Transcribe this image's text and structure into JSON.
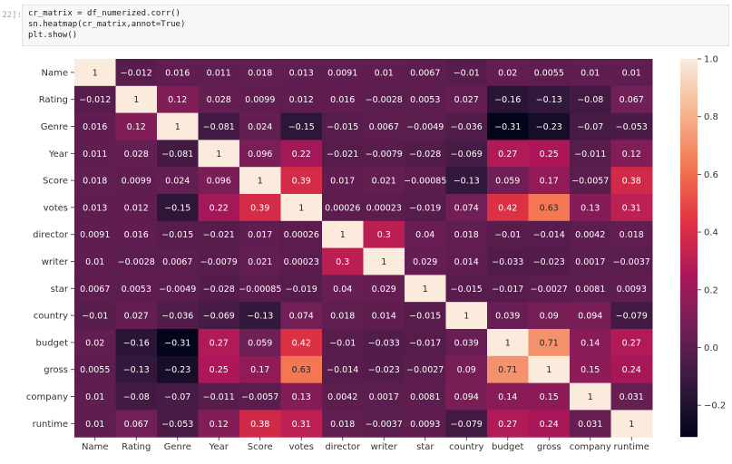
{
  "notebook": {
    "prompt": "22]:",
    "code_lines": [
      "cr_matrix = df_numerized.corr()",
      "sn.heatmap(cr_matrix,annot=True)",
      "plt.show()"
    ]
  },
  "chart_data": {
    "type": "heatmap",
    "title": "",
    "rows": [
      "Name",
      "Rating",
      "Genre",
      "Year",
      "Score",
      "votes",
      "director",
      "writer",
      "star",
      "country",
      "budget",
      "gross",
      "company",
      "runtime"
    ],
    "cols": [
      "Name",
      "Rating",
      "Genre",
      "Year",
      "Score",
      "votes",
      "director",
      "writer",
      "star",
      "country",
      "budget",
      "gross",
      "company",
      "runtime"
    ],
    "values": [
      [
        1,
        -0.012,
        0.016,
        0.011,
        0.018,
        0.013,
        0.0091,
        0.01,
        0.0067,
        -0.01,
        0.02,
        0.0055,
        0.01,
        0.01
      ],
      [
        -0.012,
        1,
        0.12,
        0.028,
        0.0099,
        0.012,
        0.016,
        -0.0028,
        0.0053,
        0.027,
        -0.16,
        -0.13,
        -0.08,
        0.067
      ],
      [
        0.016,
        0.12,
        1,
        -0.081,
        0.024,
        -0.15,
        -0.015,
        0.0067,
        -0.0049,
        -0.036,
        -0.31,
        -0.23,
        -0.07,
        -0.053
      ],
      [
        0.011,
        0.028,
        -0.081,
        1,
        0.096,
        0.22,
        -0.021,
        -0.0079,
        -0.028,
        -0.069,
        0.27,
        0.25,
        -0.011,
        0.12
      ],
      [
        0.018,
        0.0099,
        0.024,
        0.096,
        1,
        0.39,
        0.017,
        0.021,
        -0.00085,
        -0.13,
        0.059,
        0.17,
        -0.0057,
        0.38
      ],
      [
        0.013,
        0.012,
        -0.15,
        0.22,
        0.39,
        1,
        0.00026,
        0.00023,
        -0.019,
        0.074,
        0.42,
        0.63,
        0.13,
        0.31
      ],
      [
        0.0091,
        0.016,
        -0.015,
        -0.021,
        0.017,
        0.00026,
        1,
        0.3,
        0.04,
        0.018,
        -0.01,
        -0.014,
        0.0042,
        0.018
      ],
      [
        0.01,
        -0.0028,
        0.0067,
        -0.0079,
        0.021,
        0.00023,
        0.3,
        1,
        0.029,
        0.014,
        -0.033,
        -0.023,
        0.0017,
        -0.0037
      ],
      [
        0.0067,
        0.0053,
        -0.0049,
        -0.028,
        -0.00085,
        -0.019,
        0.04,
        0.029,
        1,
        -0.015,
        -0.017,
        -0.0027,
        0.0081,
        0.0093
      ],
      [
        -0.01,
        0.027,
        -0.036,
        -0.069,
        -0.13,
        0.074,
        0.018,
        0.014,
        -0.015,
        1,
        0.039,
        0.09,
        0.094,
        -0.079
      ],
      [
        0.02,
        -0.16,
        -0.31,
        0.27,
        0.059,
        0.42,
        -0.01,
        -0.033,
        -0.017,
        0.039,
        1,
        0.71,
        0.14,
        0.27
      ],
      [
        0.0055,
        -0.13,
        -0.23,
        0.25,
        0.17,
        0.63,
        -0.014,
        -0.023,
        -0.0027,
        0.09,
        0.71,
        1,
        0.15,
        0.24
      ],
      [
        0.01,
        -0.08,
        -0.07,
        -0.011,
        -0.0057,
        0.13,
        0.0042,
        0.0017,
        0.0081,
        0.094,
        0.14,
        0.15,
        1,
        0.031
      ],
      [
        0.01,
        0.067,
        -0.053,
        0.12,
        0.38,
        0.31,
        0.018,
        -0.0037,
        0.0093,
        -0.079,
        0.27,
        0.24,
        0.031,
        1
      ]
    ],
    "colorbar": {
      "range": [
        -0.31,
        1.0
      ],
      "ticks": [
        1.0,
        0.8,
        0.6,
        0.4,
        0.2,
        0.0,
        -0.2
      ],
      "tick_labels": [
        "1.0",
        "0.8",
        "0.6",
        "0.4",
        "0.2",
        "0.0",
        "−0.2"
      ]
    },
    "colormap": {
      "name": "rocket",
      "stops": [
        "#03051a",
        "#35193e",
        "#701f57",
        "#ad1759",
        "#e13342",
        "#f37651",
        "#f6b48f",
        "#faebdd"
      ]
    }
  }
}
